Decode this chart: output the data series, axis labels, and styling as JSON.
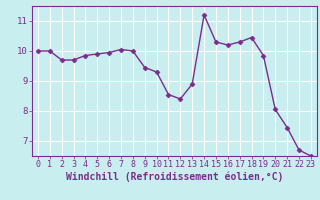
{
  "x": [
    0,
    1,
    2,
    3,
    4,
    5,
    6,
    7,
    8,
    9,
    10,
    11,
    12,
    13,
    14,
    15,
    16,
    17,
    18,
    19,
    20,
    21,
    22,
    23
  ],
  "y": [
    10.0,
    10.0,
    9.7,
    9.7,
    9.85,
    9.9,
    9.95,
    10.05,
    10.0,
    9.45,
    9.3,
    8.55,
    8.4,
    8.9,
    11.2,
    10.3,
    10.2,
    10.3,
    10.45,
    9.85,
    8.05,
    7.45,
    6.7,
    6.5
  ],
  "xlim": [
    -0.5,
    23.5
  ],
  "ylim": [
    6.5,
    11.5
  ],
  "yticks": [
    7,
    8,
    9,
    10,
    11
  ],
  "xticks": [
    0,
    1,
    2,
    3,
    4,
    5,
    6,
    7,
    8,
    9,
    10,
    11,
    12,
    13,
    14,
    15,
    16,
    17,
    18,
    19,
    20,
    21,
    22,
    23
  ],
  "xlabel": "Windchill (Refroidissement éolien,°C)",
  "line_color": "#7b2d8b",
  "marker_color": "#7b2d8b",
  "bg_color": "#c8eef0",
  "plot_bg": "#c8eef0",
  "grid_color": "#ffffff",
  "axis_color": "#7b2d8b",
  "font_color": "#7b2d8b",
  "tick_fontsize": 6.0,
  "xlabel_fontsize": 7.0
}
